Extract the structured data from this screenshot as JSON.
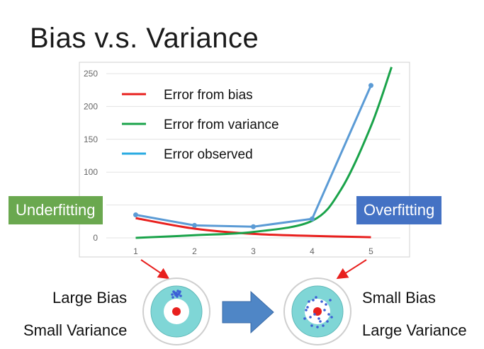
{
  "slide": {
    "title": "Bias v.s. Variance",
    "underfitting_label": "Underfitting",
    "overfitting_label": "Overfitting",
    "left_target": {
      "line1": "Large Bias",
      "line2": "Small Variance"
    },
    "right_target": {
      "line1": "Small Bias",
      "line2": "Large Variance"
    }
  },
  "colors": {
    "bias": "#e8201e",
    "variance": "#1aa34a",
    "observed": "#5b9bd5",
    "target_outer": "#ffffff",
    "target_ring": "#7fd6d6",
    "arrow": "#4f86c6"
  },
  "chart_data": {
    "type": "line",
    "title": "",
    "xlabel": "",
    "ylabel": "",
    "x_ticks": [
      1,
      2,
      3,
      4,
      5
    ],
    "y_ticks": [
      0,
      50,
      100,
      150,
      200,
      250
    ],
    "ylim": [
      0,
      250
    ],
    "xlim": [
      0.5,
      5.5
    ],
    "grid": true,
    "legend_position": "top-left",
    "series": [
      {
        "name": "Error from bias",
        "color": "#e8201e",
        "x": [
          1,
          2,
          3,
          4,
          5
        ],
        "y": [
          30,
          14,
          6,
          3,
          1
        ]
      },
      {
        "name": "Error from variance",
        "color": "#1aa34a",
        "x": [
          1,
          2,
          3,
          4,
          4.5,
          5,
          5.35
        ],
        "y": [
          0,
          4,
          9,
          26,
          75,
          170,
          260
        ]
      },
      {
        "name": "Error observed",
        "color": "#5b9bd5",
        "x": [
          1,
          2,
          3,
          4,
          5
        ],
        "y": [
          35,
          19,
          17,
          29,
          232
        ]
      }
    ]
  }
}
